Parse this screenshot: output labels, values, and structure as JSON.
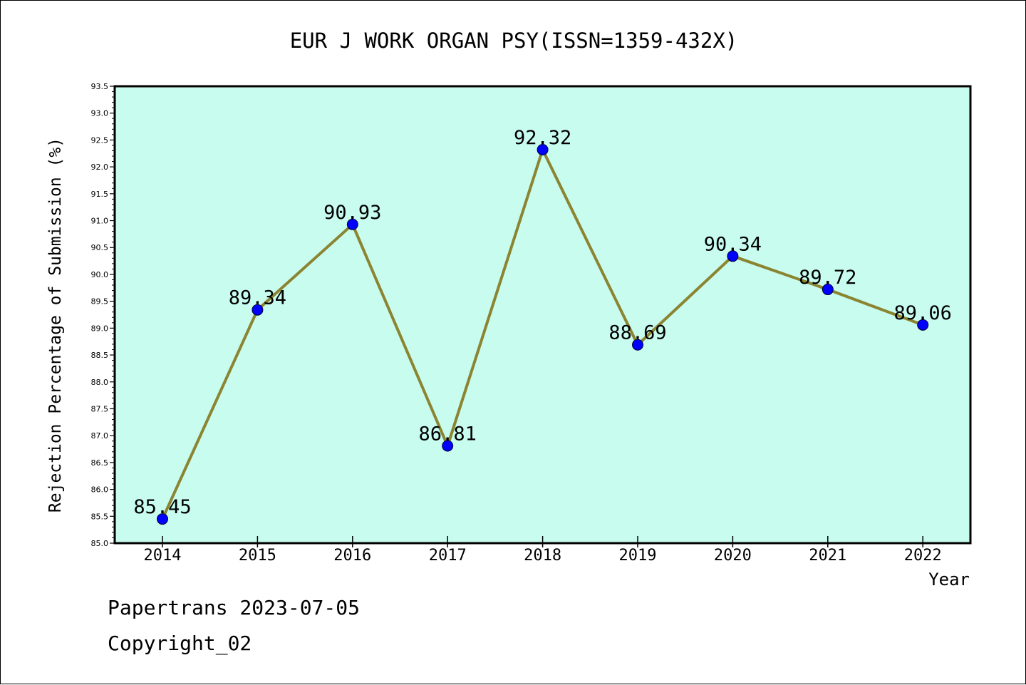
{
  "chart_data": {
    "type": "line",
    "title": "EUR J WORK ORGAN PSY(ISSN=1359-432X)",
    "xlabel": "Year",
    "ylabel": "Rejection Percentage of Submission (%)",
    "categories": [
      "2014",
      "2015",
      "2016",
      "2017",
      "2018",
      "2019",
      "2020",
      "2021",
      "2022"
    ],
    "values": [
      85.45,
      89.34,
      90.93,
      86.81,
      92.32,
      88.69,
      90.34,
      89.72,
      89.06
    ],
    "data_labels": [
      "85.45",
      "89.34",
      "90.93",
      "86.81",
      "92.32",
      "88.69",
      "90.34",
      "89.72",
      "89.06"
    ],
    "ylim": [
      85.0,
      93.5
    ],
    "y_ticks": [
      "85.0",
      "85.5",
      "86.0",
      "86.5",
      "87.0",
      "87.5",
      "88.0",
      "88.5",
      "89.0",
      "89.5",
      "90.0",
      "90.5",
      "91.0",
      "91.5",
      "92.0",
      "92.5",
      "93.0",
      "93.5"
    ],
    "grid": false,
    "colors": {
      "plot_background": "#c8fcee",
      "line": "#8b8431",
      "marker": "#0000ff"
    }
  },
  "footer": {
    "line1": "Papertrans 2023-07-05",
    "line2": "Copyright_02"
  }
}
